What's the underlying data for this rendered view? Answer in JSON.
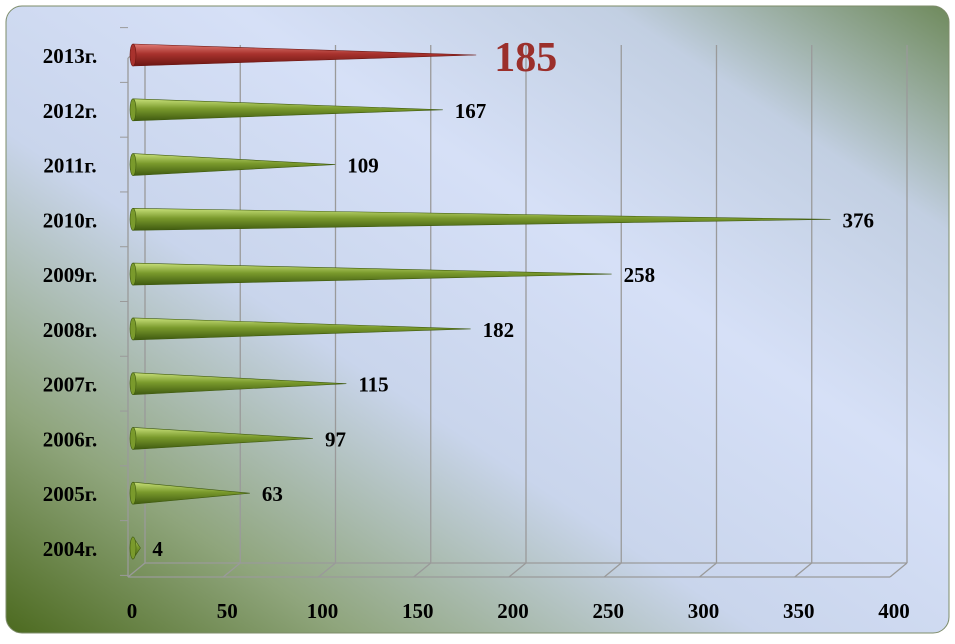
{
  "chart_data": {
    "type": "bar",
    "orientation": "horizontal",
    "style": "3d-cone",
    "categories": [
      "2004г.",
      "2005г.",
      "2006г.",
      "2007г.",
      "2008г.",
      "2009г.",
      "2010г.",
      "2011г.",
      "2012г.",
      "2013г."
    ],
    "values": [
      4,
      63,
      97,
      115,
      182,
      258,
      376,
      109,
      167,
      185
    ],
    "highlight_category": "2013г.",
    "xlim": [
      0,
      400
    ],
    "xticks": [
      "0",
      "50",
      "100",
      "150",
      "200",
      "250",
      "300",
      "350",
      "400"
    ],
    "grid": "vertical",
    "legend": "none",
    "title": "",
    "xlabel": "",
    "ylabel": ""
  },
  "colors": {
    "bar": "#7a9a2c",
    "bar_light": "#c8e07a",
    "bar_dark": "#3f5a10",
    "highlight": "#a8322d",
    "highlight_light": "#e07a74",
    "highlight_dark": "#6a1512",
    "highlight_label": "#9b2f2b",
    "label": "#000000",
    "grid": "#9a9a9a"
  }
}
